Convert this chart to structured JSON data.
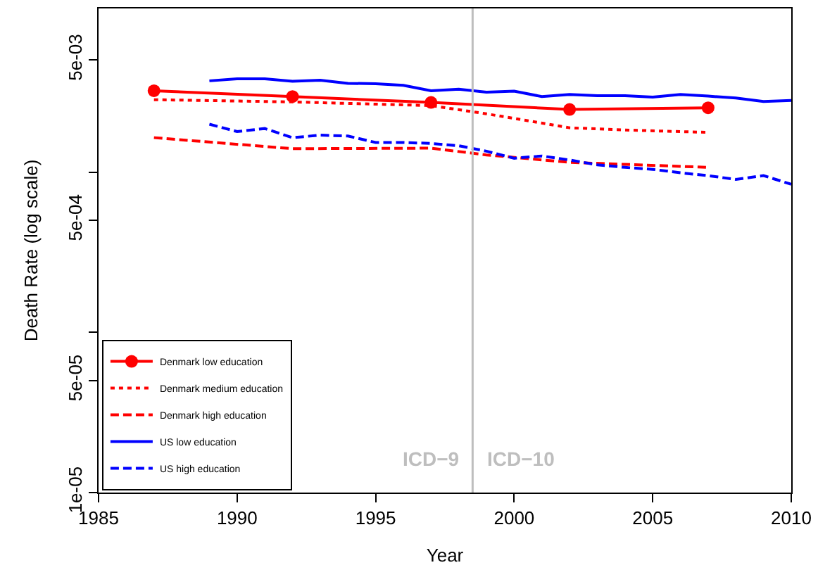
{
  "chart_data": {
    "type": "line",
    "xlabel": "Year",
    "ylabel": "Death Rate (log scale)",
    "log": "y",
    "xlim": [
      1985,
      2010
    ],
    "xticks": [
      1985,
      1990,
      1995,
      2000,
      2005,
      2010
    ],
    "ylim": [
      1e-05,
      0.0105
    ],
    "yticks": [
      {
        "value": 1e-05,
        "label": "1e-05"
      },
      {
        "value": 5e-05,
        "label": "5e-05"
      },
      {
        "value": 0.0001,
        "label": null
      },
      {
        "value": 0.0005,
        "label": "5e-04"
      },
      {
        "value": 0.001,
        "label": null
      },
      {
        "value": 0.005,
        "label": "5e-03"
      }
    ],
    "legend": "bottom left",
    "ref_lines": [
      {
        "axis": "x",
        "value": 1998.5,
        "color": "#bebebe",
        "line_style": "solid"
      }
    ],
    "annotations": [
      "ICD−9",
      "ICD−10"
    ],
    "series": [
      {
        "name": "Denmark low education",
        "color": "#ff0000",
        "line_style": "solid",
        "marker": "circle",
        "x": [
          1987,
          1992,
          1997,
          2002,
          2007
        ],
        "values": [
          0.00322,
          0.00296,
          0.00272,
          0.00246,
          0.00252
        ]
      },
      {
        "name": "Denmark medium education",
        "color": "#ff0000",
        "line_style": "dotted",
        "marker": "none",
        "x": [
          1987,
          1992,
          1997,
          1999,
          2002,
          2004,
          2007
        ],
        "values": [
          0.00283,
          0.00274,
          0.0026,
          0.00231,
          0.00189,
          0.00183,
          0.00177
        ]
      },
      {
        "name": "Denmark high education",
        "color": "#ff0000",
        "line_style": "dashed",
        "marker": "none",
        "x": [
          1987,
          1992,
          1997,
          1999,
          2002,
          2007
        ],
        "values": [
          0.00164,
          0.0014,
          0.00141,
          0.00128,
          0.00115,
          0.00107
        ]
      },
      {
        "name": "US low education",
        "color": "#0000ff",
        "line_style": "solid",
        "marker": "none",
        "x": [
          1989,
          1990,
          1991,
          1992,
          1993,
          1994,
          1995,
          1996,
          1997,
          1998,
          1999,
          2000,
          2001,
          2002,
          2003,
          2004,
          2005,
          2006,
          2007,
          2008,
          2009,
          2010
        ],
        "values": [
          0.00371,
          0.00382,
          0.00382,
          0.00369,
          0.00374,
          0.00358,
          0.00356,
          0.00348,
          0.00322,
          0.00329,
          0.00315,
          0.0032,
          0.00296,
          0.00305,
          0.003,
          0.003,
          0.00294,
          0.00305,
          0.00298,
          0.0029,
          0.00276,
          0.0028
        ]
      },
      {
        "name": "US high education",
        "color": "#0000ff",
        "line_style": "dashed",
        "marker": "none",
        "x": [
          1989,
          1990,
          1991,
          1992,
          1993,
          1994,
          1995,
          1996,
          1997,
          1998,
          1999,
          2000,
          2001,
          2002,
          2003,
          2004,
          2005,
          2006,
          2007,
          2008,
          2009,
          2010
        ],
        "values": [
          0.00199,
          0.00179,
          0.00187,
          0.00164,
          0.0017,
          0.00168,
          0.00153,
          0.00153,
          0.00151,
          0.00146,
          0.00135,
          0.00122,
          0.00126,
          0.00119,
          0.00111,
          0.00107,
          0.00104,
          0.00099,
          0.00095,
          0.0009,
          0.00095,
          0.00084
        ]
      }
    ]
  }
}
